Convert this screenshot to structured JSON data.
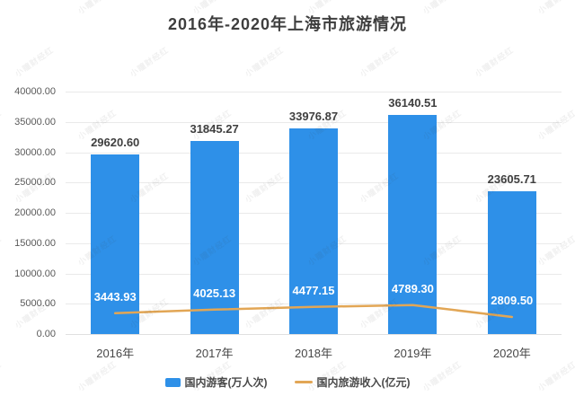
{
  "title": "2016年-2020年上海市旅游情况",
  "watermark_text": "小瞳财经红",
  "colors": {
    "bar": "#2E90E8",
    "line": "#E2A655",
    "title_text": "#3E3E3E",
    "axis_text": "#595959",
    "grid": "#EAEAEA",
    "bar_label_text": "#3F3F3F",
    "line_label_text": "#FFFFFF",
    "background": "#FFFFFF"
  },
  "chart_data": {
    "type": "bar",
    "combo": "bar+line",
    "title": "2016年-2020年上海市旅游情况",
    "categories": [
      "2016年",
      "2017年",
      "2018年",
      "2019年",
      "2020年"
    ],
    "series": [
      {
        "name": "国内游客(万人次)",
        "type": "bar",
        "values": [
          29620.6,
          31845.27,
          33976.87,
          36140.51,
          23605.71
        ],
        "labels": [
          "29620.60",
          "31845.27",
          "33976.87",
          "36140.51",
          "23605.71"
        ]
      },
      {
        "name": "国内旅游收入(亿元)",
        "type": "line",
        "values": [
          3443.93,
          4025.13,
          4477.15,
          4789.3,
          2809.5
        ],
        "labels": [
          "3443.93",
          "4025.13",
          "4477.15",
          "4789.30",
          "2809.50"
        ]
      }
    ],
    "xlabel": "",
    "ylabel": "",
    "ylim": [
      0,
      40000
    ],
    "ytick_step": 5000,
    "ytick_labels": [
      "0.00",
      "5000.00",
      "10000.00",
      "15000.00",
      "20000.00",
      "25000.00",
      "30000.00",
      "35000.00",
      "40000.00"
    ],
    "grid": true,
    "legend_position": "bottom"
  }
}
